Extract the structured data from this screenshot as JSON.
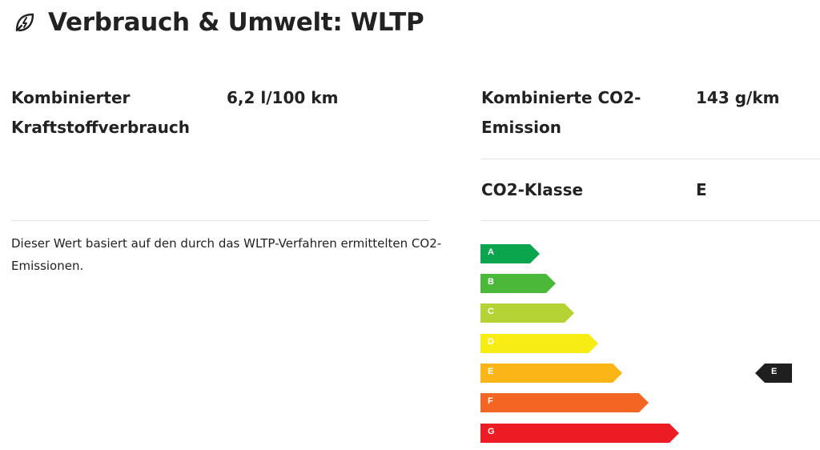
{
  "header": {
    "title": "Verbrauch & Umwelt: WLTP",
    "icon": "leaf-lightning-icon"
  },
  "left": {
    "fuel_label": "Kombinierter Kraftstoffverbrauch",
    "fuel_value": "6,2 l/100 km",
    "note": "Dieser Wert basiert auf den durch das WLTP-Verfahren ermittelten CO2-Emissionen."
  },
  "right": {
    "co2_label": "Kombinierte CO2-Emission",
    "co2_value": "143 g/km",
    "class_label": "CO2-Klasse",
    "class_value": "E"
  },
  "energy_scale": {
    "classes": [
      {
        "letter": "A",
        "color": "#0aa54c"
      },
      {
        "letter": "B",
        "color": "#4cb83a"
      },
      {
        "letter": "C",
        "color": "#b5d334"
      },
      {
        "letter": "D",
        "color": "#f7ec13"
      },
      {
        "letter": "E",
        "color": "#fbb516"
      },
      {
        "letter": "F",
        "color": "#f26522"
      },
      {
        "letter": "G",
        "color": "#ed1c24"
      }
    ],
    "selected": "E",
    "marker_color": "#1f1f1f"
  }
}
